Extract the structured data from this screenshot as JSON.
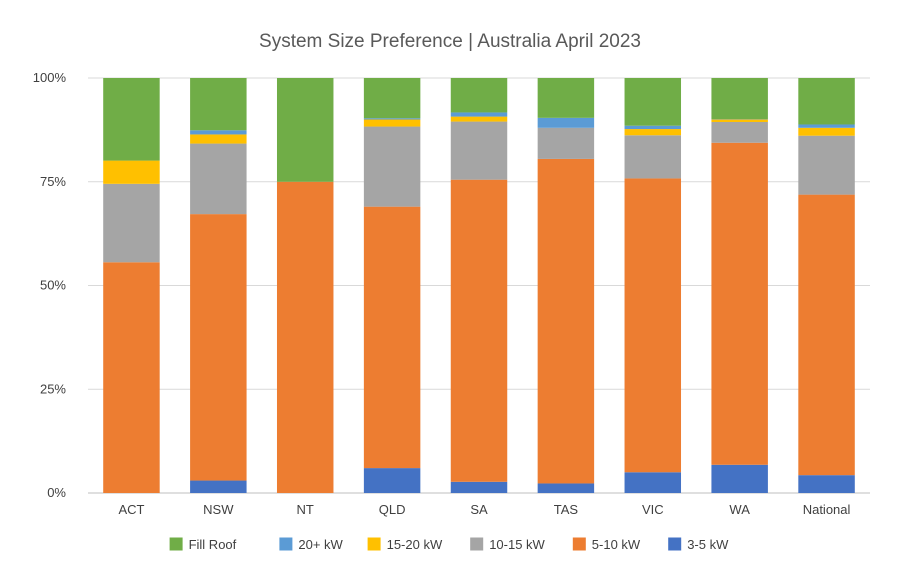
{
  "chart_data": {
    "type": "bar",
    "stacked": true,
    "percent": true,
    "title": "System Size Preference | Australia April 2023",
    "categories": [
      "ACT",
      "NSW",
      "NT",
      "QLD",
      "SA",
      "TAS",
      "VIC",
      "WA",
      "National"
    ],
    "ylim": [
      0,
      100
    ],
    "yticks": [
      "0%",
      "25%",
      "50%",
      "75%",
      "100%"
    ],
    "ytick_values": [
      0,
      25,
      50,
      75,
      100
    ],
    "grid": true,
    "legend_position": "bottom",
    "series": [
      {
        "name": "3-5 kW",
        "color": "#4472C4",
        "values": [
          0,
          3,
          0,
          6,
          2.7,
          2.3,
          5,
          6.8,
          4.3
        ]
      },
      {
        "name": "5-10 kW",
        "color": "#ED7D31",
        "values": [
          55.6,
          64.2,
          75,
          63,
          72.8,
          78.2,
          70.8,
          77.6,
          67.6
        ]
      },
      {
        "name": "10-15 kW",
        "color": "#A5A5A5",
        "values": [
          18.9,
          17,
          0,
          19.3,
          14,
          7.5,
          10.4,
          5,
          14.2
        ]
      },
      {
        "name": "15-20 kW",
        "color": "#FFC000",
        "values": [
          5.6,
          2.2,
          0,
          1.7,
          1.2,
          0,
          1.5,
          0.6,
          1.9
        ]
      },
      {
        "name": "20+ kW",
        "color": "#5B9BD5",
        "values": [
          0,
          1,
          0,
          0.3,
          1,
          2.4,
          0.8,
          0.1,
          0.8
        ]
      },
      {
        "name": "Fill Roof",
        "color": "#70AD47",
        "values": [
          19.9,
          12.6,
          25,
          9.7,
          8.3,
          9.6,
          11.5,
          9.9,
          11.2
        ]
      }
    ],
    "legend_order": [
      "Fill Roof",
      "20+ kW",
      "15-20 kW",
      "10-15 kW",
      "5-10 kW",
      "3-5 kW"
    ]
  }
}
